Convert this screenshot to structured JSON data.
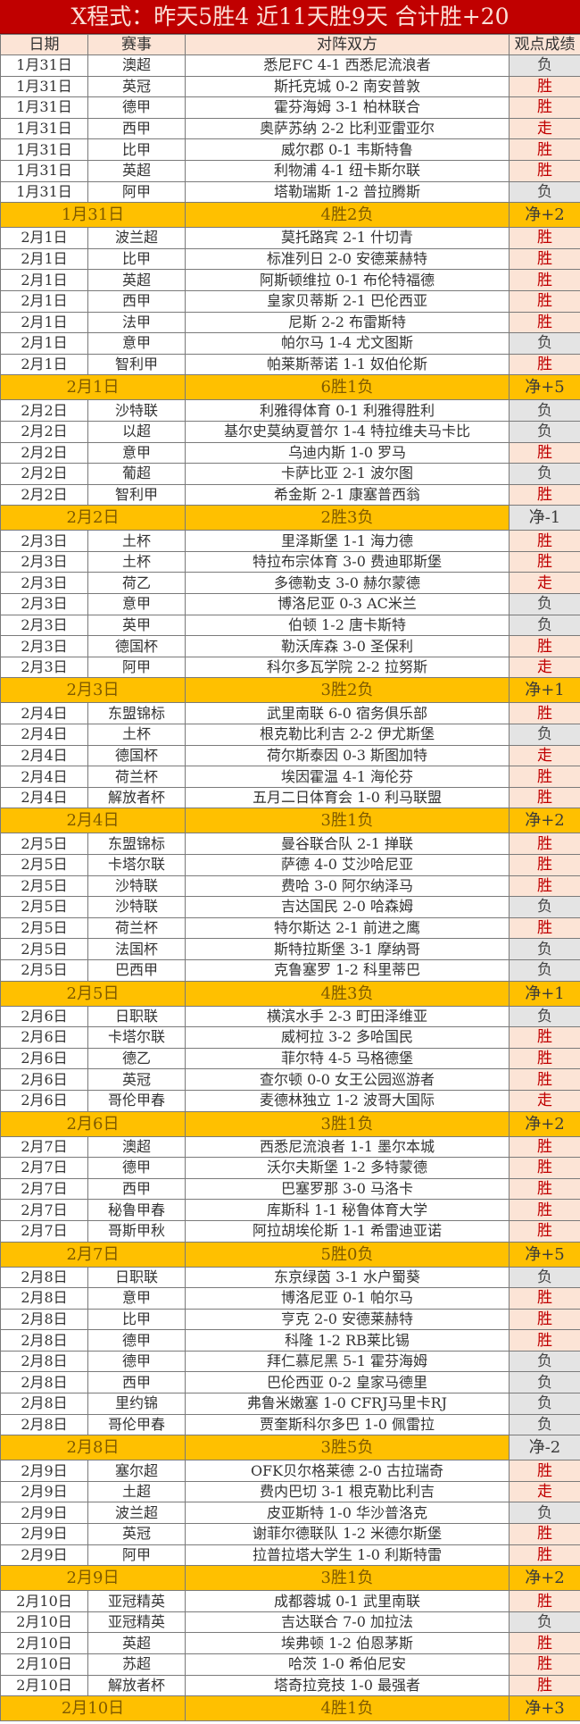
{
  "title": "X程式：昨天5胜4  近11天胜9天  合计胜+20",
  "headers": {
    "date": "日期",
    "league": "赛事",
    "match": "对阵双方",
    "result": "观点成绩"
  },
  "colors": {
    "title_bg": "#c00000",
    "header_bg": "#fce4d6",
    "summary_bg": "#ffc000",
    "win": "#c00000",
    "loss_bg": "#e4e4e4"
  },
  "sections": [
    {
      "rows": [
        [
          "1月31日",
          "澳超",
          "悉尼FC 4-1 西悉尼流浪者",
          "负"
        ],
        [
          "1月31日",
          "英冠",
          "斯托克城 0-2 南安普敦",
          "胜"
        ],
        [
          "1月31日",
          "德甲",
          "霍芬海姆 3-1 柏林联合",
          "胜"
        ],
        [
          "1月31日",
          "西甲",
          "奥萨苏纳 2-2 比利亚雷亚尔",
          "走"
        ],
        [
          "1月31日",
          "比甲",
          "威尔郡 0-1 韦斯特鲁",
          "胜"
        ],
        [
          "1月31日",
          "英超",
          "利物浦 4-1 纽卡斯尔联",
          "胜"
        ],
        [
          "1月31日",
          "阿甲",
          "塔勒瑞斯 1-2 普拉腾斯",
          "负"
        ]
      ],
      "summary": {
        "date": "1月31日",
        "record": "4胜2负",
        "net": "净+2"
      }
    },
    {
      "rows": [
        [
          "2月1日",
          "波兰超",
          "莫托路宾 2-1 什切青",
          "胜"
        ],
        [
          "2月1日",
          "比甲",
          "标准列日 2-0 安德莱赫特",
          "胜"
        ],
        [
          "2月1日",
          "英超",
          "阿斯顿维拉 0-1 布伦特福德",
          "胜"
        ],
        [
          "2月1日",
          "西甲",
          "皇家贝蒂斯 2-1 巴伦西亚",
          "胜"
        ],
        [
          "2月1日",
          "法甲",
          "尼斯 2-2 布雷斯特",
          "胜"
        ],
        [
          "2月1日",
          "意甲",
          "帕尔马 1-4 尤文图斯",
          "负"
        ],
        [
          "2月1日",
          "智利甲",
          "帕莱斯蒂诺 1-1 奴伯伦斯",
          "胜"
        ]
      ],
      "summary": {
        "date": "2月1日",
        "record": "6胜1负",
        "net": "净+5"
      }
    },
    {
      "rows": [
        [
          "2月2日",
          "沙特联",
          "利雅得体育 0-1 利雅得胜利",
          "负"
        ],
        [
          "2月2日",
          "以超",
          "基尔史莫纳夏普尔 1-4 特拉维夫马卡比",
          "负"
        ],
        [
          "2月2日",
          "意甲",
          "乌迪内斯 1-0 罗马",
          "胜"
        ],
        [
          "2月2日",
          "葡超",
          "卡萨比亚 2-1 波尔图",
          "负"
        ],
        [
          "2月2日",
          "智利甲",
          "希金斯 2-1 康塞普西翁",
          "胜"
        ]
      ],
      "summary": {
        "date": "2月2日",
        "record": "2胜3负",
        "net": "净-1"
      }
    },
    {
      "rows": [
        [
          "2月3日",
          "土杯",
          "里泽斯堡 1-1 海力德",
          "胜"
        ],
        [
          "2月3日",
          "土杯",
          "特拉布宗体育 3-0 费迪耶斯堡",
          "胜"
        ],
        [
          "2月3日",
          "荷乙",
          "多德勒支 3-0 赫尔蒙德",
          "走"
        ],
        [
          "2月3日",
          "意甲",
          "博洛尼亚 0-3 AC米兰",
          "负"
        ],
        [
          "2月3日",
          "英甲",
          "伯顿 1-2 唐卡斯特",
          "负"
        ],
        [
          "2月3日",
          "德国杯",
          "勒沃库森 3-0 圣保利",
          "胜"
        ],
        [
          "2月3日",
          "阿甲",
          "科尔多瓦学院 2-2 拉努斯",
          "走"
        ]
      ],
      "summary": {
        "date": "2月3日",
        "record": "3胜2负",
        "net": "净+1"
      }
    },
    {
      "rows": [
        [
          "2月4日",
          "东盟锦标",
          "武里南联 6-0 宿务俱乐部",
          "胜"
        ],
        [
          "2月4日",
          "土杯",
          "根克勒比利吉 2-2 伊尤斯堡",
          "负"
        ],
        [
          "2月4日",
          "德国杯",
          "荷尔斯泰因 0-3 斯图加特",
          "走"
        ],
        [
          "2月4日",
          "荷兰杯",
          "埃因霍温 4-1 海伦芬",
          "胜"
        ],
        [
          "2月4日",
          "解放者杯",
          "五月二日体育会 1-0 利马联盟",
          "胜"
        ]
      ],
      "summary": {
        "date": "2月4日",
        "record": "3胜1负",
        "net": "净+2"
      }
    },
    {
      "rows": [
        [
          "2月5日",
          "东盟锦标",
          "曼谷联合队 2-1 掸联",
          "胜"
        ],
        [
          "2月5日",
          "卡塔尔联",
          "萨德 4-0 艾沙哈尼亚",
          "胜"
        ],
        [
          "2月5日",
          "沙特联",
          "费哈 3-0 阿尔纳泽马",
          "胜"
        ],
        [
          "2月5日",
          "沙特联",
          "吉达国民 2-0 哈森姆",
          "负"
        ],
        [
          "2月5日",
          "荷兰杯",
          "特尔斯达 2-1 前进之鹰",
          "胜"
        ],
        [
          "2月5日",
          "法国杯",
          "斯特拉斯堡 3-1 摩纳哥",
          "负"
        ],
        [
          "2月5日",
          "巴西甲",
          "克鲁塞罗 1-2 科里蒂巴",
          "负"
        ]
      ],
      "summary": {
        "date": "2月5日",
        "record": "4胜3负",
        "net": "净+1"
      }
    },
    {
      "rows": [
        [
          "2月6日",
          "日职联",
          "横滨水手 2-3 町田泽维亚",
          "负"
        ],
        [
          "2月6日",
          "卡塔尔联",
          "威柯拉 3-2 多哈国民",
          "胜"
        ],
        [
          "2月6日",
          "德乙",
          "菲尔特 4-5 马格德堡",
          "胜"
        ],
        [
          "2月6日",
          "英冠",
          "查尔顿 0-0 女王公园巡游者",
          "胜"
        ],
        [
          "2月6日",
          "哥伦甲春",
          "麦德林独立 1-2 波哥大国际",
          "走"
        ]
      ],
      "summary": {
        "date": "2月6日",
        "record": "3胜1负",
        "net": "净+2"
      }
    },
    {
      "rows": [
        [
          "2月7日",
          "澳超",
          "西悉尼流浪者 1-1 墨尔本城",
          "胜"
        ],
        [
          "2月7日",
          "德甲",
          "沃尔夫斯堡 1-2 多特蒙德",
          "胜"
        ],
        [
          "2月7日",
          "西甲",
          "巴塞罗那 3-0 马洛卡",
          "胜"
        ],
        [
          "2月7日",
          "秘鲁甲春",
          "库斯科 1-1 秘鲁体育大学",
          "胜"
        ],
        [
          "2月7日",
          "哥斯甲秋",
          "阿拉胡埃伦斯 1-1 希雷迪亚诺",
          "胜"
        ]
      ],
      "summary": {
        "date": "2月7日",
        "record": "5胜0负",
        "net": "净+5"
      }
    },
    {
      "rows": [
        [
          "2月8日",
          "日职联",
          "东京绿茵 3-1 水户蜀葵",
          "负"
        ],
        [
          "2月8日",
          "意甲",
          "博洛尼亚 0-1 帕尔马",
          "胜"
        ],
        [
          "2月8日",
          "比甲",
          "亨克 2-0 安德莱赫特",
          "胜"
        ],
        [
          "2月8日",
          "德甲",
          "科隆 1-2 RB莱比锡",
          "胜"
        ],
        [
          "2月8日",
          "德甲",
          "拜仁慕尼黑 5-1 霍芬海姆",
          "负"
        ],
        [
          "2月8日",
          "西甲",
          "巴伦西亚 0-2 皇家马德里",
          "负"
        ],
        [
          "2月8日",
          "里约锦",
          "弗鲁米嫩塞 1-0 CFRJ马里卡RJ",
          "负"
        ],
        [
          "2月8日",
          "哥伦甲春",
          "贾奎斯科尔多巴 1-0 佩雷拉",
          "负"
        ]
      ],
      "summary": {
        "date": "2月8日",
        "record": "3胜5负",
        "net": "净-2"
      }
    },
    {
      "rows": [
        [
          "2月9日",
          "塞尔超",
          "OFK贝尔格莱德 2-0 古拉瑞奇",
          "胜"
        ],
        [
          "2月9日",
          "土超",
          "费内巴切 3-1 根克勒比利吉",
          "走"
        ],
        [
          "2月9日",
          "波兰超",
          "皮亚斯特 1-0 华沙普洛克",
          "负"
        ],
        [
          "2月9日",
          "英冠",
          "谢菲尔德联队 1-2 米德尔斯堡",
          "胜"
        ],
        [
          "2月9日",
          "阿甲",
          "拉普拉塔大学生 1-0 利斯特雷",
          "胜"
        ]
      ],
      "summary": {
        "date": "2月9日",
        "record": "3胜1负",
        "net": "净+2"
      }
    },
    {
      "rows": [
        [
          "2月10日",
          "亚冠精英",
          "成都蓉城 0-1 武里南联",
          "胜"
        ],
        [
          "2月10日",
          "亚冠精英",
          "吉达联合 7-0 加拉法",
          "负"
        ],
        [
          "2月10日",
          "英超",
          "埃弗顿 1-2 伯恩茅斯",
          "胜"
        ],
        [
          "2月10日",
          "苏超",
          "哈茨 1-0 希伯尼安",
          "胜"
        ],
        [
          "2月10日",
          "解放者杯",
          "塔奇拉竞技 1-0 最强者",
          "胜"
        ]
      ],
      "summary": {
        "date": "2月10日",
        "record": "4胜1负",
        "net": "净+3"
      }
    }
  ]
}
